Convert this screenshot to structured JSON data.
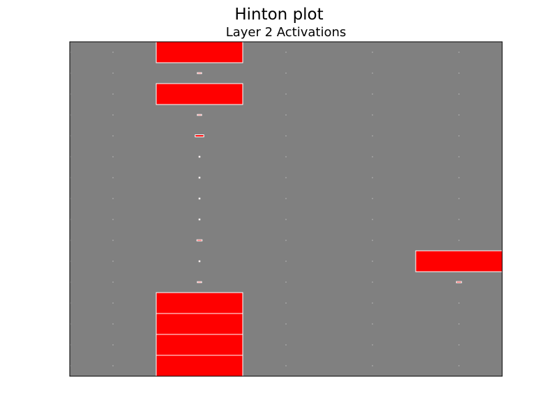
{
  "figure": {
    "suptitle": "Hinton plot"
  },
  "chart_data": {
    "type": "heatmap",
    "style": "hinton",
    "title": "Layer 2 Activations",
    "xlabel": "",
    "ylabel": "",
    "columns": 5,
    "rows": 16,
    "grid": false,
    "ticks": "none",
    "colors": {
      "background": "#808080",
      "positive": "#ff0000",
      "edge": "#ffffff",
      "axes": "#000000"
    },
    "max_weight": 1.0,
    "values": [
      [
        0.0,
        1.0,
        0.0,
        0.0,
        0.0
      ],
      [
        0.0,
        0.05,
        0.0,
        0.0,
        0.0
      ],
      [
        0.0,
        1.0,
        0.0,
        0.0,
        0.0
      ],
      [
        0.0,
        0.05,
        0.0,
        0.0,
        0.0
      ],
      [
        0.0,
        0.1,
        0.0,
        0.0,
        0.0
      ],
      [
        0.0,
        0.01,
        0.0,
        0.0,
        0.0
      ],
      [
        0.0,
        0.01,
        0.0,
        0.0,
        0.0
      ],
      [
        0.0,
        0.01,
        0.0,
        0.0,
        0.0
      ],
      [
        0.0,
        0.01,
        0.0,
        0.0,
        0.0
      ],
      [
        0.0,
        0.06,
        0.0,
        0.0,
        0.0
      ],
      [
        0.0,
        0.01,
        0.0,
        0.0,
        1.0
      ],
      [
        0.0,
        0.05,
        0.0,
        0.0,
        0.06
      ],
      [
        0.0,
        1.0,
        0.0,
        0.0,
        0.0
      ],
      [
        0.0,
        1.0,
        0.0,
        0.0,
        0.0
      ],
      [
        0.0,
        1.0,
        0.0,
        0.0,
        0.0
      ],
      [
        0.0,
        1.0,
        0.0,
        0.0,
        0.0
      ]
    ]
  }
}
